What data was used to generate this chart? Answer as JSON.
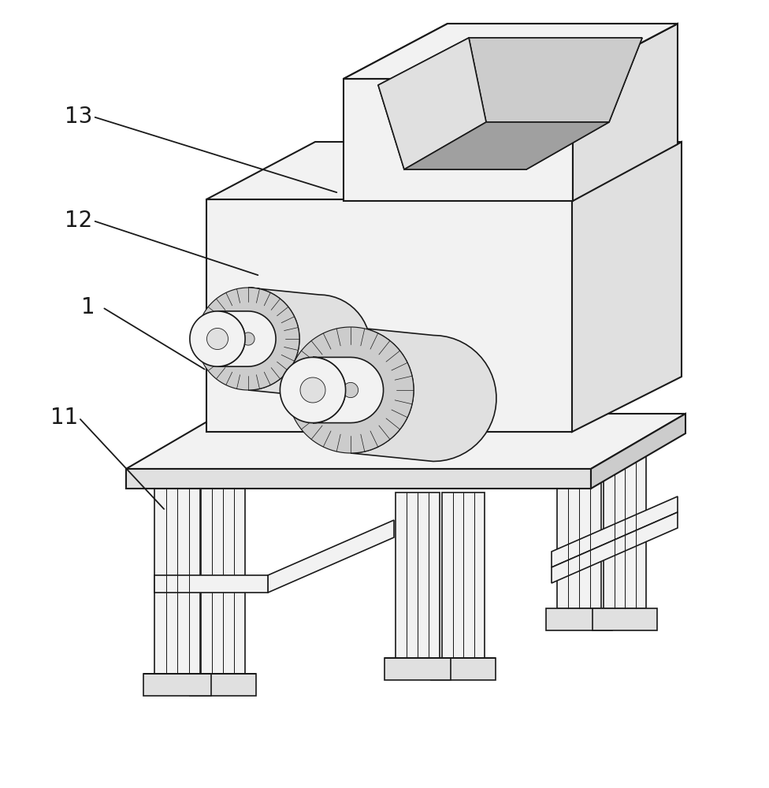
{
  "bg_color": "#ffffff",
  "line_color": "#1a1a1a",
  "fill_white": "#ffffff",
  "fill_light": "#f2f2f2",
  "fill_mid": "#e0e0e0",
  "fill_dark": "#cccccc",
  "fill_darker": "#b8b8b8",
  "fill_darkest": "#a0a0a0",
  "label_fontsize": 20,
  "figsize": [
    9.76,
    10.0
  ],
  "dpi": 100
}
